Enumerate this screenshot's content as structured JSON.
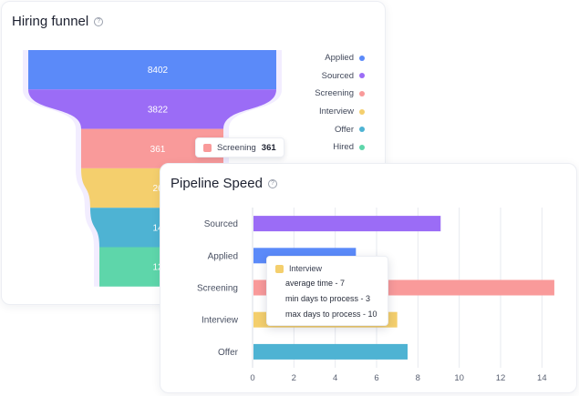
{
  "funnel_card": {
    "title": "Hiring funnel",
    "help_glyph": "?",
    "tooltip": {
      "label": "Screening",
      "value": "361",
      "color": "#f99a9a"
    }
  },
  "speed_card": {
    "title": "Pipeline Speed",
    "help_glyph": "?",
    "tooltip": {
      "series": "Interview",
      "color": "#f4cf6d",
      "lines": [
        "average time - 7",
        "min days to process - 3",
        "max days to process - 10"
      ]
    }
  },
  "chart_data": [
    {
      "type": "funnel",
      "title": "Hiring funnel",
      "stages": [
        {
          "name": "Applied",
          "value": 8402,
          "label": "8402",
          "color": "#5b8af9"
        },
        {
          "name": "Sourced",
          "value": 3822,
          "label": "3822",
          "color": "#9b6cf6"
        },
        {
          "name": "Screening",
          "value": 361,
          "label": "361",
          "color": "#f99a9a"
        },
        {
          "name": "Interview",
          "value": null,
          "label": "26",
          "color": "#f4cf6d"
        },
        {
          "name": "Offer",
          "value": null,
          "label": "14",
          "color": "#4eb3d3"
        },
        {
          "name": "Hired",
          "value": null,
          "label": "12",
          "color": "#5ed6aa"
        }
      ],
      "legend_position": "right"
    },
    {
      "type": "bar",
      "orientation": "horizontal",
      "title": "Pipeline Speed",
      "categories": [
        "Sourced",
        "Applied",
        "Screening",
        "Interview",
        "Offer"
      ],
      "values": [
        9.1,
        5,
        14.6,
        7,
        7.5
      ],
      "colors": [
        "#9b6cf6",
        "#5b8af9",
        "#f99a9a",
        "#f4cf6d",
        "#4eb3d3"
      ],
      "xlim": [
        0,
        15
      ],
      "xticks": [
        0,
        2,
        4,
        6,
        8,
        10,
        12,
        14
      ],
      "grid": true
    }
  ]
}
